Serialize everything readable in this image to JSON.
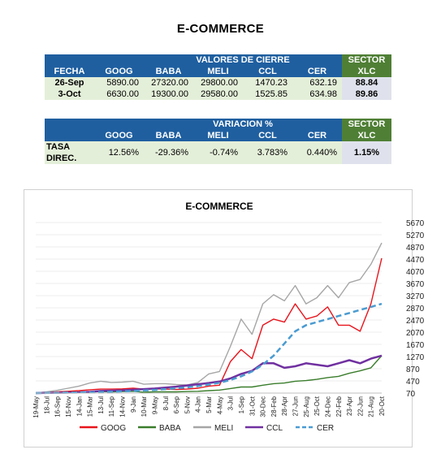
{
  "page_title": "E-COMMERCE",
  "table1": {
    "group_header": "VALORES DE CIERRE",
    "sector_header": "SECTOR",
    "columns": [
      "FECHA",
      "GOOG",
      "BABA",
      "MELI",
      "CCL",
      "CER",
      "XLC"
    ],
    "rows": [
      {
        "fecha": "26-Sep",
        "goog": "5890.00",
        "baba": "27320.00",
        "meli": "29800.00",
        "ccl": "1470.23",
        "cer": "632.19",
        "xlc": "88.84"
      },
      {
        "fecha": "3-Oct",
        "goog": "6630.00",
        "baba": "19300.00",
        "meli": "29580.00",
        "ccl": "1525.85",
        "cer": "634.98",
        "xlc": "89.86"
      }
    ]
  },
  "table2": {
    "group_header": "VARIACION %",
    "sector_header": "SECTOR",
    "columns": [
      "",
      "GOOG",
      "BABA",
      "MELI",
      "CCL",
      "CER",
      "XLC"
    ],
    "row": {
      "label": "TASA DIREC.",
      "goog": "12.56%",
      "baba": "-29.36%",
      "meli": "-0.74%",
      "ccl": "3.783%",
      "cer": "0.440%",
      "xlc": "1.15%"
    }
  },
  "chart_data": {
    "type": "line",
    "title": "E-COMMERCE",
    "ylim": [
      70,
      5670
    ],
    "y_ticks": [
      "5670",
      "5270",
      "4870",
      "4470",
      "4070",
      "3670",
      "3270",
      "2870",
      "2470",
      "2070",
      "1670",
      "1270",
      "870",
      "470",
      "70"
    ],
    "x_tick_labels": [
      "19-May",
      "18-Jul",
      "16-Sep",
      "15-Nov",
      "14-Jan",
      "15-Mar",
      "13-Jul",
      "11-Sep",
      "14-Nov",
      "9-Jan",
      "10-Mar",
      "9-May",
      "8-Jul",
      "6-Sep",
      "5-Nov",
      "4-Jan",
      "5-Mar",
      "4-May",
      "3-Jul",
      "1-Sep",
      "31-Oct",
      "30-Dec",
      "28-Feb",
      "28-Apr",
      "27-Jun",
      "25-Aug",
      "25-Oct",
      "24-Dec",
      "22-Feb",
      "23-Apr",
      "22-Jun",
      "21-Aug",
      "20-Oct"
    ],
    "legend_position": "bottom",
    "series": [
      {
        "name": "GOOG",
        "color": "#e8141c",
        "style": "solid",
        "values": [
          70,
          90,
          110,
          130,
          150,
          180,
          200,
          200,
          210,
          230,
          200,
          210,
          200,
          190,
          200,
          230,
          300,
          330,
          1100,
          1500,
          1200,
          2300,
          2500,
          2400,
          3000,
          2500,
          2600,
          2900,
          2300,
          2300,
          2100,
          3000,
          4500
        ]
      },
      {
        "name": "BABA",
        "color": "#3a7d2c",
        "style": "solid",
        "values": [
          70,
          70,
          80,
          90,
          100,
          110,
          120,
          110,
          120,
          130,
          100,
          110,
          110,
          110,
          120,
          130,
          150,
          170,
          220,
          270,
          270,
          330,
          380,
          400,
          460,
          480,
          520,
          580,
          620,
          720,
          800,
          900,
          1300
        ]
      },
      {
        "name": "MELI",
        "color": "#a6a6a6",
        "style": "solid",
        "values": [
          70,
          110,
          160,
          230,
          300,
          400,
          460,
          420,
          430,
          460,
          360,
          380,
          380,
          350,
          340,
          420,
          700,
          780,
          1600,
          2500,
          2000,
          3000,
          3300,
          3100,
          3600,
          3000,
          3200,
          3600,
          3200,
          3700,
          3800,
          4300,
          5000
        ]
      },
      {
        "name": "CCL",
        "color": "#7030a0",
        "style": "solid",
        "values": [
          70,
          75,
          80,
          85,
          95,
          110,
          140,
          150,
          160,
          180,
          200,
          220,
          250,
          280,
          320,
          360,
          400,
          450,
          550,
          700,
          800,
          1050,
          1050,
          900,
          950,
          1050,
          1000,
          950,
          1050,
          1150,
          1050,
          1200,
          1300
        ]
      },
      {
        "name": "CER",
        "color": "#4a9bd1",
        "style": "dashed",
        "values": [
          70,
          75,
          80,
          85,
          90,
          95,
          105,
          115,
          125,
          140,
          155,
          175,
          200,
          230,
          260,
          300,
          350,
          410,
          500,
          620,
          780,
          1000,
          1300,
          1700,
          2100,
          2300,
          2400,
          2500,
          2600,
          2700,
          2800,
          2900,
          3000
        ]
      }
    ]
  }
}
